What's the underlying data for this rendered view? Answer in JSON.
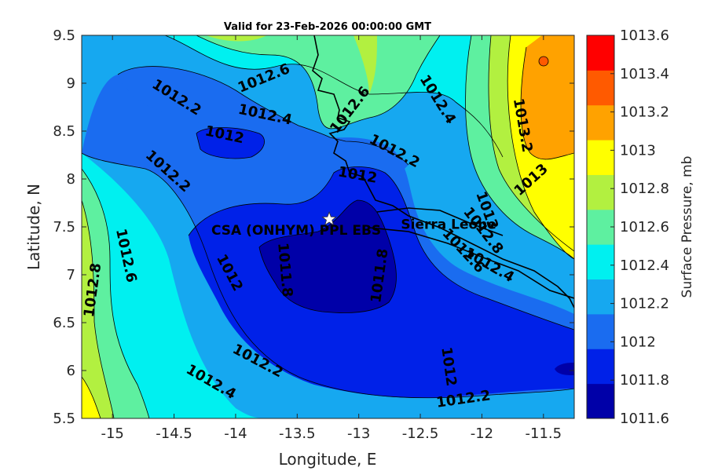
{
  "chart_data": {
    "type": "contour",
    "title": "Valid for 23-Feb-2026 00:00:00 GMT",
    "xlabel": "Longitude, E",
    "ylabel": "Latitude, N",
    "xlim": [
      -15.25,
      -11.25
    ],
    "ylim": [
      5.5,
      9.5
    ],
    "xticks": [
      "-15",
      "-14.5",
      "-14",
      "-13.5",
      "-13",
      "-12.5",
      "-12",
      "-11.5"
    ],
    "yticks": [
      "5.5",
      "6",
      "6.5",
      "7",
      "7.5",
      "8",
      "8.5",
      "9",
      "9.5"
    ],
    "colorbar": {
      "label": "Surface Pressure, mb",
      "ticks": [
        "1011.6",
        "1011.8",
        "1012",
        "1012.2",
        "1012.4",
        "1012.6",
        "1012.8",
        "1013",
        "1013.2",
        "1013.4",
        "1013.6"
      ],
      "colors": [
        "#0000a8",
        "#0021e8",
        "#1a6cf0",
        "#16a8f0",
        "#00f0f0",
        "#5ef0a0",
        "#b2f040",
        "#ffff00",
        "#ffa200",
        "#ff5a00",
        "#ff0000"
      ]
    },
    "contour_labels": [
      {
        "text": "1012.6",
        "lon": -13.77,
        "lat": 9.05,
        "rot": -22
      },
      {
        "text": "1012.2",
        "lon": -14.48,
        "lat": 8.85,
        "rot": 32
      },
      {
        "text": "1012.4",
        "lon": -13.76,
        "lat": 8.67,
        "rot": 12
      },
      {
        "text": "1012",
        "lon": -14.09,
        "lat": 8.46,
        "rot": 12
      },
      {
        "text": "1012.6",
        "lon": -13.07,
        "lat": 8.72,
        "rot": -52
      },
      {
        "text": "1012.4",
        "lon": -12.36,
        "lat": 8.83,
        "rot": 58
      },
      {
        "text": "1012.2",
        "lon": -12.71,
        "lat": 8.29,
        "rot": 28
      },
      {
        "text": "1013.2",
        "lon": -11.67,
        "lat": 8.56,
        "rot": 80
      },
      {
        "text": "1013",
        "lon": -11.6,
        "lat": 7.99,
        "rot": -42
      },
      {
        "text": "1012.2",
        "lon": -14.55,
        "lat": 8.08,
        "rot": 42
      },
      {
        "text": "1012",
        "lon": -13.01,
        "lat": 8.04,
        "rot": 10
      },
      {
        "text": "1013",
        "lon": -11.96,
        "lat": 7.67,
        "rot": 70
      },
      {
        "text": "1012.8",
        "lon": -11.99,
        "lat": 7.46,
        "rot": 52
      },
      {
        "text": "1012.6",
        "lon": -12.15,
        "lat": 7.25,
        "rot": 47
      },
      {
        "text": "1012.4",
        "lon": -11.94,
        "lat": 7.1,
        "rot": 30
      },
      {
        "text": "1012.6",
        "lon": -14.89,
        "lat": 7.2,
        "rot": 78
      },
      {
        "text": "1012.8",
        "lon": -15.16,
        "lat": 6.84,
        "rot": -82
      },
      {
        "text": "1011.8",
        "lon": -13.6,
        "lat": 7.05,
        "rot": 85
      },
      {
        "text": "1011.8",
        "lon": -12.83,
        "lat": 6.99,
        "rot": -82
      },
      {
        "text": "1012",
        "lon": -14.05,
        "lat": 7.02,
        "rot": 62
      },
      {
        "text": "1012.2",
        "lon": -13.82,
        "lat": 6.1,
        "rot": 28
      },
      {
        "text": "1012.4",
        "lon": -14.2,
        "lat": 5.88,
        "rot": 30
      },
      {
        "text": "1012",
        "lon": -12.27,
        "lat": 6.04,
        "rot": 82
      },
      {
        "text": "1012.2",
        "lon": -12.15,
        "lat": 5.7,
        "rot": -8
      }
    ],
    "site": {
      "label": "CSA (ONHYM) PPL EBS",
      "lon": -13.24,
      "lat": 7.58
    },
    "region_label": {
      "text": "Sierra Leone",
      "lon": -12.27,
      "lat": 7.48
    }
  }
}
